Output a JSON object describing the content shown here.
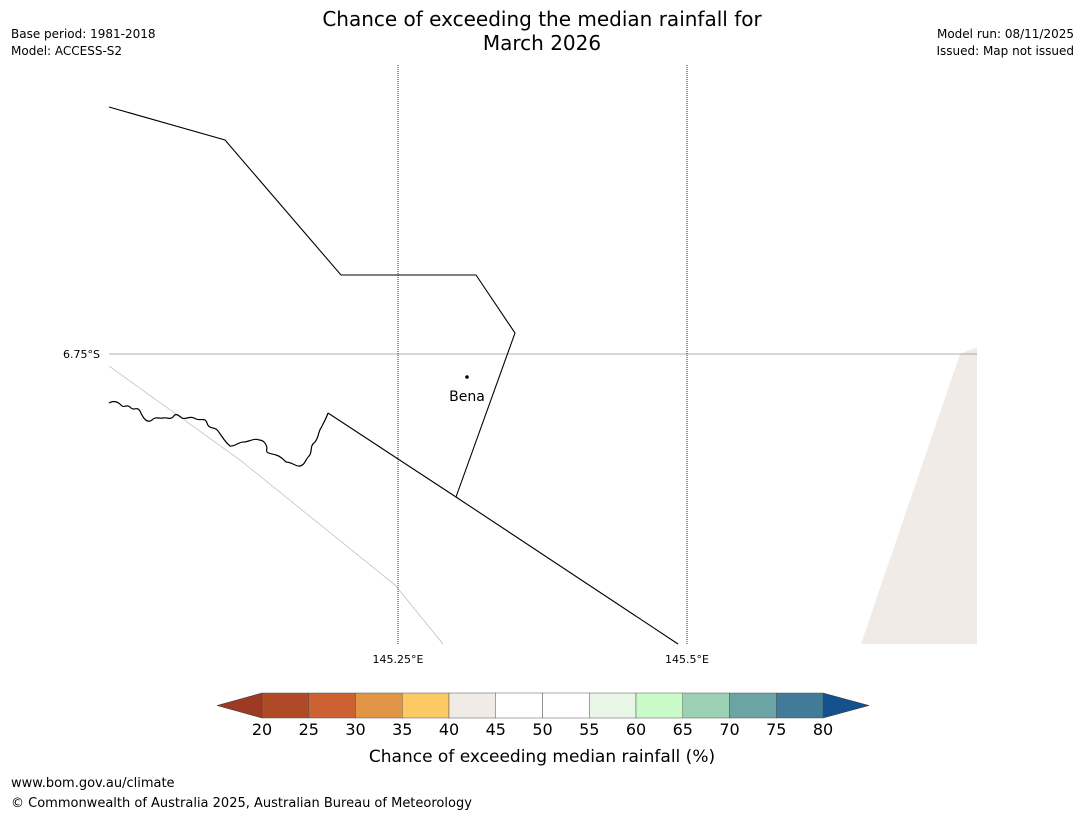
{
  "header": {
    "base_period": "Base period: 1981-2018",
    "model": "Model: ACCESS-S2",
    "title_line1": "Chance of exceeding the median rainfall for",
    "title_line2": "March 2026",
    "model_run": "Model run: 08/11/2025",
    "issued": "Issued: Map not issued"
  },
  "map": {
    "latitude_label": "6.75°S",
    "longitude_labels": [
      "145.25°E",
      "145.5°E"
    ],
    "place": {
      "name": "Bena"
    },
    "colors": {
      "boundary": "#000000",
      "gridline": "#000000",
      "land_tint": "#f0ebe6"
    }
  },
  "colorbar": {
    "label": "Chance of exceeding median rainfall (%)",
    "ticks": [
      "20",
      "25",
      "30",
      "35",
      "40",
      "45",
      "50",
      "55",
      "60",
      "65",
      "70",
      "75",
      "80"
    ],
    "under_color": "#9c3a23",
    "over_color": "#15518c",
    "colors": [
      "#b04926",
      "#cc6233",
      "#e39547",
      "#fdc963",
      "#f0ebe6",
      "#ffffff",
      "#ffffff",
      "#e8f6e6",
      "#c9fbc8",
      "#9bd0b5",
      "#6ca4a6",
      "#427a99"
    ]
  },
  "footer": {
    "website": "www.bom.gov.au/climate",
    "copyright": "© Commonwealth of Australia 2025, Australian Bureau of Meteorology"
  }
}
